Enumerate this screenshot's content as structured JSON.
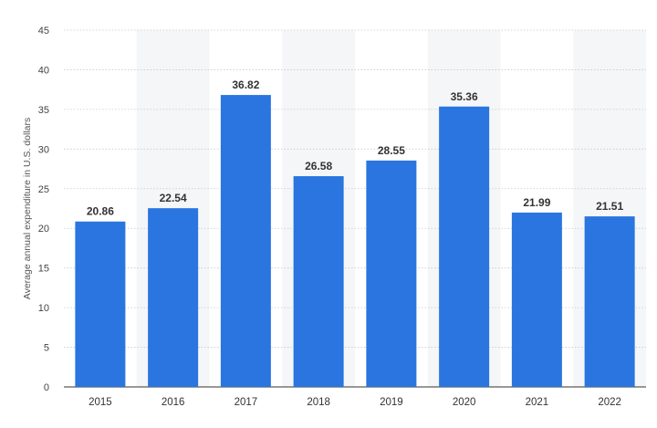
{
  "chart_data": {
    "type": "bar",
    "title": "",
    "xlabel": "",
    "ylabel": "Average annual expenditure in U.S. dollars",
    "categories": [
      "2015",
      "2016",
      "2017",
      "2018",
      "2019",
      "2020",
      "2021",
      "2022"
    ],
    "values": [
      20.86,
      22.54,
      36.82,
      26.58,
      28.55,
      35.36,
      21.99,
      21.51
    ],
    "value_labels": [
      "20.86",
      "22.54",
      "36.82",
      "26.58",
      "28.55",
      "35.36",
      "21.99",
      "21.51"
    ],
    "ylim": [
      0,
      45
    ],
    "yticks": [
      "0",
      "5",
      "10",
      "15",
      "20",
      "25",
      "30",
      "35",
      "40",
      "45"
    ],
    "grid": true,
    "legend": "none",
    "bar_color": "#2a75df",
    "band_color": "#f5f6f8"
  }
}
